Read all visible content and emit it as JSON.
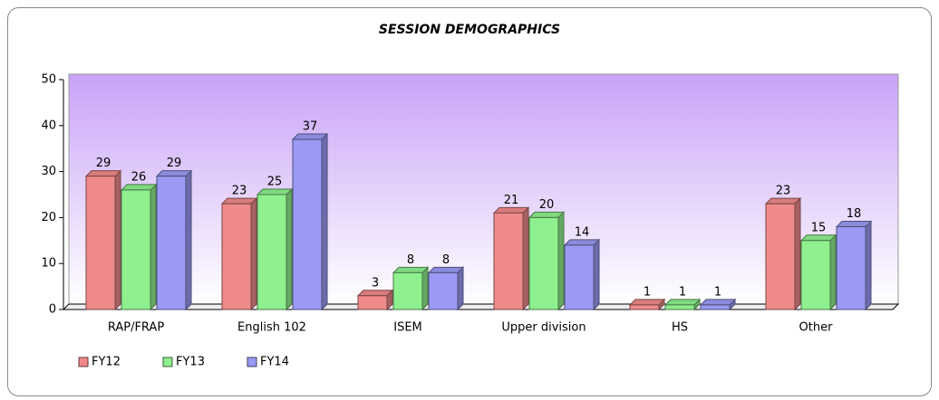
{
  "chart_data": {
    "type": "bar",
    "title": "SESSION DEMOGRAPHICS",
    "categories": [
      "RAP/FRAP",
      "English 102",
      "ISEM",
      "Upper division",
      "HS",
      "Other"
    ],
    "series": [
      {
        "name": "FY12",
        "color": "#f08a8a",
        "values": [
          29,
          23,
          3,
          21,
          1,
          23
        ]
      },
      {
        "name": "FY13",
        "color": "#8ef08e",
        "values": [
          26,
          25,
          8,
          20,
          1,
          15
        ]
      },
      {
        "name": "FY14",
        "color": "#9a9af4",
        "values": [
          29,
          37,
          8,
          14,
          1,
          18
        ]
      }
    ],
    "ylim": [
      0,
      50
    ],
    "yticks": [
      0,
      10,
      20,
      30,
      40,
      50
    ],
    "legend": "bottom-left"
  }
}
